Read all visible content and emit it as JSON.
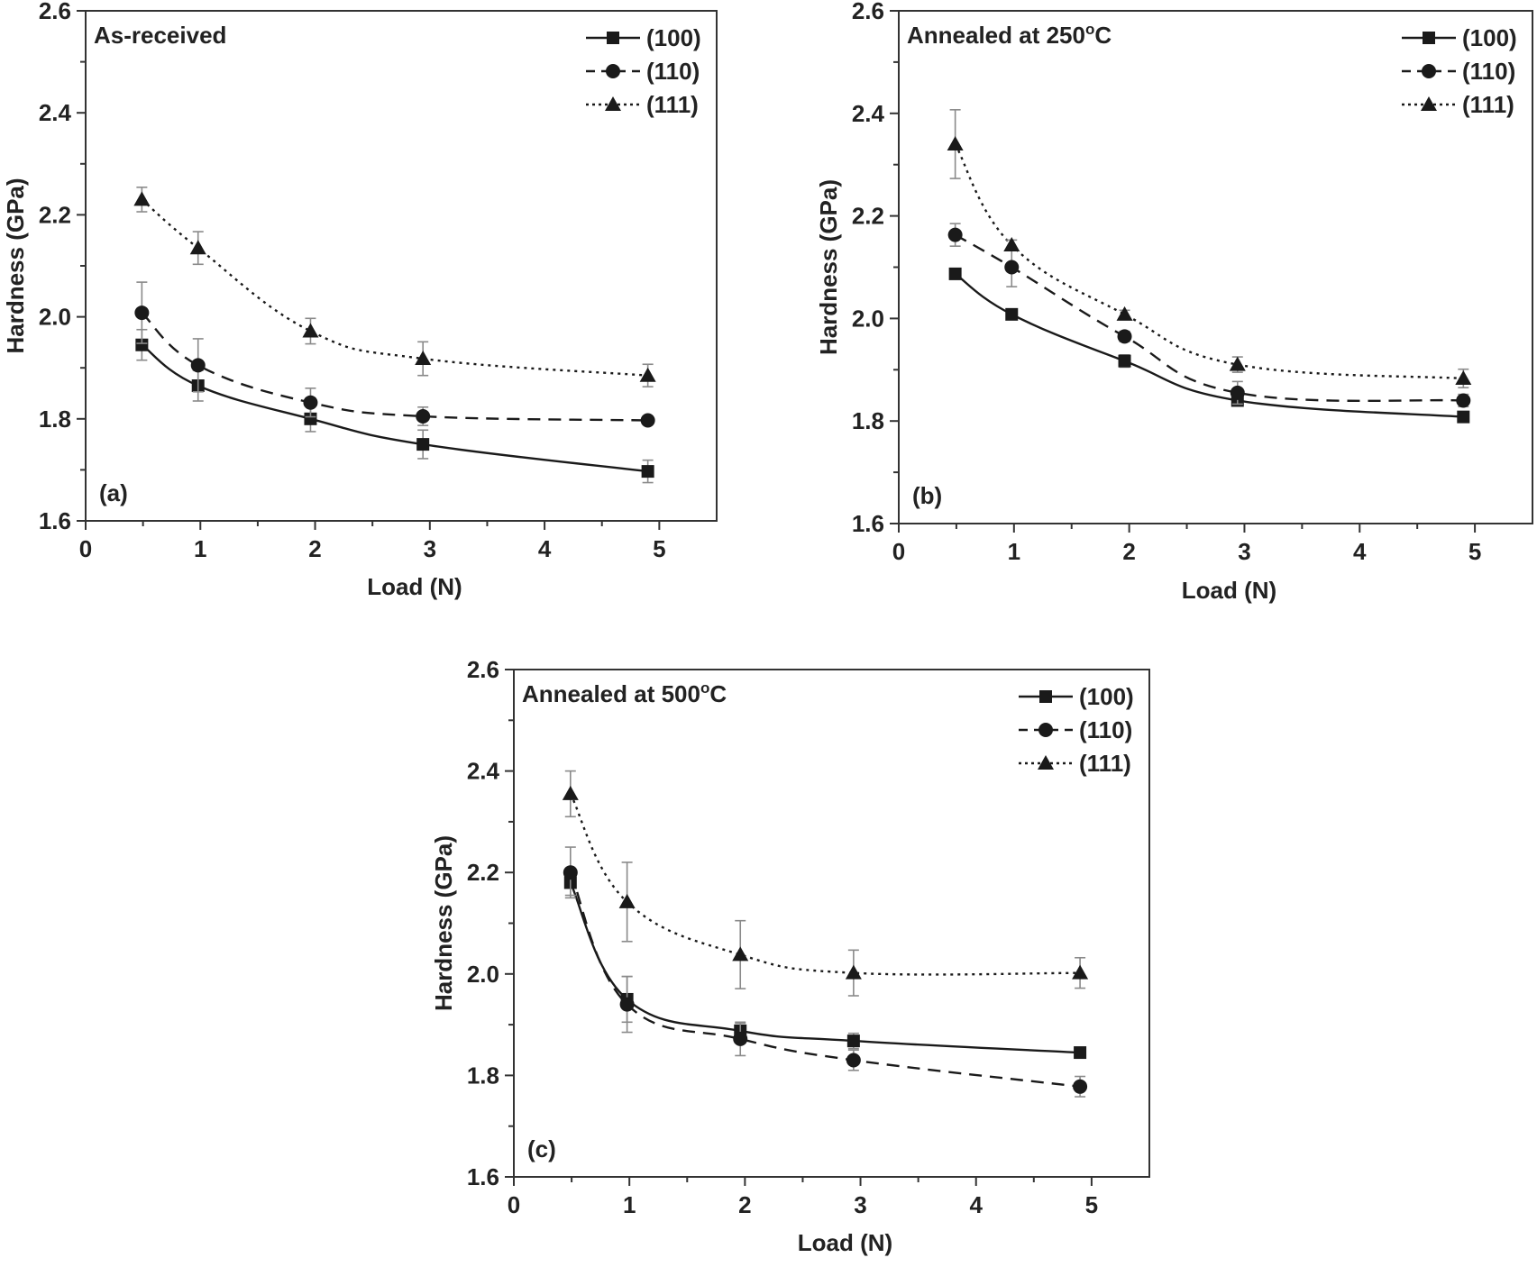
{
  "chart_data": [
    {
      "type": "line",
      "panel": "(a)",
      "title": "As-received",
      "xlabel": "Load (N)",
      "ylabel": "Hardness (GPa)",
      "xlim": [
        0,
        5.5
      ],
      "ylim": [
        1.6,
        2.6
      ],
      "xticks": [
        "0",
        "1",
        "2",
        "3",
        "4",
        "5"
      ],
      "yticks": [
        "1.6",
        "1.8",
        "2.0",
        "2.2",
        "2.4",
        "2.6"
      ],
      "legend_position": "top-right",
      "x": [
        0.49,
        0.98,
        1.96,
        2.94,
        4.9
      ],
      "series": [
        {
          "name": "(100)",
          "marker": "square",
          "style": "solid",
          "values": [
            1.945,
            1.865,
            1.8,
            1.75,
            1.697
          ],
          "errors": [
            0.03,
            0.03,
            0.025,
            0.028,
            0.022
          ]
        },
        {
          "name": "(110)",
          "marker": "circle",
          "style": "dashed",
          "values": [
            2.008,
            1.905,
            1.832,
            1.805,
            1.797
          ],
          "errors": [
            0.06,
            0.052,
            0.028,
            0.018,
            0.008
          ]
        },
        {
          "name": "(111)",
          "marker": "triangle",
          "style": "dotted",
          "values": [
            2.23,
            2.135,
            1.972,
            1.918,
            1.885
          ],
          "errors": [
            0.024,
            0.032,
            0.025,
            0.033,
            0.022
          ]
        }
      ]
    },
    {
      "type": "line",
      "panel": "(b)",
      "title": "Annealed at 250",
      "title_sup": "o",
      "title_suffix": "C",
      "xlabel": "Load (N)",
      "ylabel": "Hardness (GPa)",
      "xlim": [
        0,
        5.5
      ],
      "ylim": [
        1.6,
        2.6
      ],
      "xticks": [
        "0",
        "1",
        "2",
        "3",
        "4",
        "5"
      ],
      "yticks": [
        "1.6",
        "1.8",
        "2.0",
        "2.2",
        "2.4",
        "2.6"
      ],
      "legend_position": "top-right",
      "x": [
        0.49,
        0.98,
        1.96,
        2.94,
        4.9
      ],
      "series": [
        {
          "name": "(100)",
          "marker": "square",
          "style": "solid",
          "values": [
            2.087,
            2.008,
            1.917,
            1.84,
            1.808
          ],
          "errors": [
            0.008,
            0.008,
            0.012,
            0.01,
            0.008
          ]
        },
        {
          "name": "(110)",
          "marker": "circle",
          "style": "dashed",
          "values": [
            2.163,
            2.1,
            1.965,
            1.855,
            1.84
          ],
          "errors": [
            0.022,
            0.038,
            0.01,
            0.022,
            0.012
          ]
        },
        {
          "name": "(111)",
          "marker": "triangle",
          "style": "dotted",
          "values": [
            2.34,
            2.143,
            2.008,
            1.91,
            1.883
          ],
          "errors": [
            0.067,
            0.01,
            0.008,
            0.015,
            0.018
          ]
        }
      ]
    },
    {
      "type": "line",
      "panel": "(c)",
      "title": "Annealed at 500",
      "title_sup": "o",
      "title_suffix": "C",
      "xlabel": "Load (N)",
      "ylabel": "Hardness (GPa)",
      "xlim": [
        0,
        5.5
      ],
      "ylim": [
        1.6,
        2.6
      ],
      "xticks": [
        "0",
        "1",
        "2",
        "3",
        "4",
        "5"
      ],
      "yticks": [
        "1.6",
        "1.8",
        "2.0",
        "2.2",
        "2.4",
        "2.6"
      ],
      "legend_position": "top-right",
      "x": [
        0.49,
        0.98,
        1.96,
        2.94,
        4.9
      ],
      "series": [
        {
          "name": "(100)",
          "marker": "square",
          "style": "solid",
          "values": [
            2.18,
            1.95,
            1.888,
            1.868,
            1.845
          ],
          "errors": [
            0.025,
            0.045,
            0.015,
            0.015,
            0.006
          ]
        },
        {
          "name": "(110)",
          "marker": "circle",
          "style": "dashed",
          "values": [
            2.2,
            1.94,
            1.872,
            1.83,
            1.778
          ],
          "errors": [
            0.05,
            0.055,
            0.033,
            0.02,
            0.02
          ]
        },
        {
          "name": "(111)",
          "marker": "triangle",
          "style": "dotted",
          "values": [
            2.355,
            2.142,
            2.038,
            2.002,
            2.002
          ],
          "errors": [
            0.045,
            0.078,
            0.067,
            0.045,
            0.03
          ]
        }
      ]
    }
  ]
}
